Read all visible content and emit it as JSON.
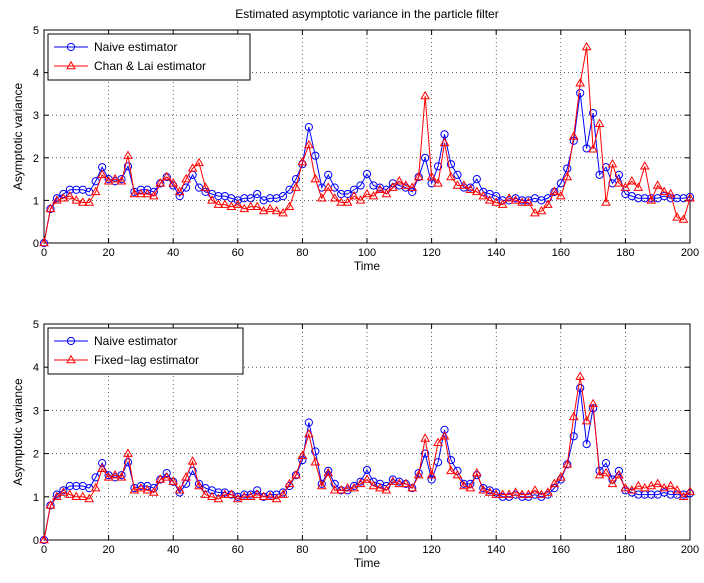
{
  "chart_data": [
    {
      "type": "line",
      "title": "Estimated asymptotic variance in the particle filter",
      "xlabel": "Time",
      "ylabel": "Asymptotic variance",
      "xlim": [
        0,
        200
      ],
      "ylim": [
        0,
        5
      ],
      "xticks": [
        "0",
        "20",
        "40",
        "60",
        "80",
        "100",
        "120",
        "140",
        "160",
        "180",
        "200"
      ],
      "yticks": [
        "0",
        "1",
        "2",
        "3",
        "4",
        "5"
      ],
      "grid": true,
      "legend_position": "top-left",
      "x": [
        0,
        2,
        4,
        6,
        8,
        10,
        12,
        14,
        16,
        18,
        20,
        22,
        24,
        26,
        28,
        30,
        32,
        34,
        36,
        38,
        40,
        42,
        44,
        46,
        48,
        50,
        52,
        54,
        56,
        58,
        60,
        62,
        64,
        66,
        68,
        70,
        72,
        74,
        76,
        78,
        80,
        82,
        84,
        86,
        88,
        90,
        92,
        94,
        96,
        98,
        100,
        102,
        104,
        106,
        108,
        110,
        112,
        114,
        116,
        118,
        120,
        122,
        124,
        126,
        128,
        130,
        132,
        134,
        136,
        138,
        140,
        142,
        144,
        146,
        148,
        150,
        152,
        154,
        156,
        158,
        160,
        162,
        164,
        166,
        168,
        170,
        172,
        174,
        176,
        178,
        180,
        182,
        184,
        186,
        188,
        190,
        192,
        194,
        196,
        198,
        200
      ],
      "series": [
        {
          "name": "Naive estimator",
          "color": "#0000ff",
          "marker": "circle",
          "values": [
            0,
            0.8,
            1.05,
            1.15,
            1.25,
            1.25,
            1.25,
            1.2,
            1.45,
            1.78,
            1.5,
            1.45,
            1.5,
            1.8,
            1.2,
            1.25,
            1.25,
            1.2,
            1.4,
            1.55,
            1.35,
            1.1,
            1.3,
            1.6,
            1.3,
            1.2,
            1.15,
            1.1,
            1.1,
            1.05,
            1.0,
            1.05,
            1.05,
            1.15,
            1.0,
            1.05,
            1.05,
            1.1,
            1.25,
            1.5,
            1.85,
            2.72,
            2.05,
            1.3,
            1.6,
            1.3,
            1.15,
            1.15,
            1.25,
            1.35,
            1.62,
            1.35,
            1.3,
            1.25,
            1.4,
            1.35,
            1.3,
            1.2,
            1.55,
            2.0,
            1.4,
            1.8,
            2.55,
            1.85,
            1.6,
            1.3,
            1.3,
            1.5,
            1.2,
            1.15,
            1.1,
            1.0,
            1.0,
            1.05,
            1.0,
            1.0,
            1.05,
            1.0,
            1.05,
            1.2,
            1.4,
            1.75,
            2.4,
            3.52,
            2.22,
            3.05,
            1.6,
            1.78,
            1.4,
            1.6,
            1.15,
            1.1,
            1.05,
            1.05,
            1.05,
            1.05,
            1.1,
            1.05,
            1.05,
            1.05,
            1.08
          ]
        },
        {
          "name": "Chan & Lai estimator",
          "color": "#ff0000",
          "marker": "triangle",
          "values": [
            0,
            0.8,
            1.0,
            1.05,
            1.1,
            1.0,
            0.95,
            0.95,
            1.2,
            1.6,
            1.45,
            1.5,
            1.45,
            2.05,
            1.15,
            1.15,
            1.15,
            1.1,
            1.4,
            1.55,
            1.4,
            1.2,
            1.5,
            1.75,
            1.88,
            1.3,
            1.0,
            0.9,
            0.9,
            0.85,
            0.9,
            0.8,
            0.85,
            0.85,
            0.75,
            0.8,
            0.75,
            0.7,
            0.85,
            1.3,
            1.9,
            2.3,
            1.5,
            1.05,
            1.3,
            1.05,
            0.95,
            0.95,
            1.1,
            1.0,
            1.15,
            1.1,
            1.25,
            1.15,
            1.3,
            1.45,
            1.35,
            1.3,
            1.55,
            3.45,
            1.55,
            1.4,
            2.35,
            1.55,
            1.35,
            1.35,
            1.25,
            1.2,
            1.1,
            1.0,
            0.95,
            0.9,
            1.05,
            1.0,
            0.95,
            0.95,
            0.7,
            0.75,
            0.9,
            1.2,
            1.1,
            1.55,
            2.5,
            3.75,
            4.6,
            2.2,
            2.8,
            0.95,
            1.85,
            1.4,
            1.3,
            1.45,
            1.3,
            1.8,
            1.0,
            1.35,
            1.2,
            1.15,
            0.6,
            0.55,
            1.05
          ]
        }
      ]
    },
    {
      "type": "line",
      "title": "",
      "xlabel": "Time",
      "ylabel": "Asymptotic variance",
      "xlim": [
        0,
        200
      ],
      "ylim": [
        0,
        5
      ],
      "xticks": [
        "0",
        "20",
        "40",
        "60",
        "80",
        "100",
        "120",
        "140",
        "160",
        "180",
        "200"
      ],
      "yticks": [
        "0",
        "1",
        "2",
        "3",
        "4",
        "5"
      ],
      "grid": true,
      "legend_position": "top-left",
      "x": [
        0,
        2,
        4,
        6,
        8,
        10,
        12,
        14,
        16,
        18,
        20,
        22,
        24,
        26,
        28,
        30,
        32,
        34,
        36,
        38,
        40,
        42,
        44,
        46,
        48,
        50,
        52,
        54,
        56,
        58,
        60,
        62,
        64,
        66,
        68,
        70,
        72,
        74,
        76,
        78,
        80,
        82,
        84,
        86,
        88,
        90,
        92,
        94,
        96,
        98,
        100,
        102,
        104,
        106,
        108,
        110,
        112,
        114,
        116,
        118,
        120,
        122,
        124,
        126,
        128,
        130,
        132,
        134,
        136,
        138,
        140,
        142,
        144,
        146,
        148,
        150,
        152,
        154,
        156,
        158,
        160,
        162,
        164,
        166,
        168,
        170,
        172,
        174,
        176,
        178,
        180,
        182,
        184,
        186,
        188,
        190,
        192,
        194,
        196,
        198,
        200
      ],
      "series": [
        {
          "name": "Naive estimator",
          "color": "#0000ff",
          "marker": "circle",
          "values": [
            0,
            0.8,
            1.05,
            1.15,
            1.25,
            1.25,
            1.25,
            1.2,
            1.45,
            1.78,
            1.5,
            1.45,
            1.5,
            1.8,
            1.2,
            1.25,
            1.25,
            1.2,
            1.4,
            1.55,
            1.35,
            1.1,
            1.3,
            1.6,
            1.3,
            1.2,
            1.15,
            1.1,
            1.1,
            1.05,
            1.0,
            1.05,
            1.05,
            1.15,
            1.0,
            1.05,
            1.05,
            1.1,
            1.25,
            1.5,
            1.85,
            2.72,
            2.05,
            1.3,
            1.6,
            1.3,
            1.15,
            1.15,
            1.25,
            1.35,
            1.62,
            1.35,
            1.3,
            1.25,
            1.4,
            1.35,
            1.3,
            1.2,
            1.55,
            2.0,
            1.4,
            1.8,
            2.55,
            1.85,
            1.6,
            1.3,
            1.3,
            1.5,
            1.2,
            1.15,
            1.1,
            1.0,
            1.0,
            1.05,
            1.0,
            1.0,
            1.05,
            1.0,
            1.05,
            1.2,
            1.4,
            1.75,
            2.4,
            3.52,
            2.22,
            3.05,
            1.6,
            1.78,
            1.4,
            1.6,
            1.15,
            1.1,
            1.05,
            1.05,
            1.05,
            1.05,
            1.1,
            1.05,
            1.05,
            1.05,
            1.08
          ]
        },
        {
          "name": "Fixed−lag estimator",
          "color": "#ff0000",
          "marker": "triangle",
          "values": [
            0,
            0.8,
            1.0,
            1.1,
            1.05,
            1.0,
            1.0,
            0.95,
            1.2,
            1.65,
            1.45,
            1.5,
            1.45,
            2.0,
            1.15,
            1.2,
            1.15,
            1.1,
            1.4,
            1.45,
            1.35,
            1.15,
            1.45,
            1.82,
            1.25,
            1.05,
            1.0,
            0.95,
            1.05,
            1.05,
            0.95,
            1.0,
            1.0,
            1.05,
            1.0,
            1.0,
            0.95,
            1.05,
            1.3,
            1.5,
            1.95,
            2.45,
            1.8,
            1.25,
            1.55,
            1.15,
            1.15,
            1.2,
            1.2,
            1.3,
            1.4,
            1.25,
            1.2,
            1.15,
            1.35,
            1.3,
            1.3,
            1.2,
            1.5,
            2.35,
            1.5,
            2.25,
            2.4,
            1.6,
            1.5,
            1.25,
            1.2,
            1.55,
            1.15,
            1.1,
            1.05,
            1.05,
            1.05,
            1.1,
            1.05,
            1.05,
            1.15,
            1.05,
            1.1,
            1.3,
            1.45,
            1.75,
            2.85,
            3.78,
            2.75,
            3.15,
            1.5,
            1.55,
            1.3,
            1.5,
            1.2,
            1.15,
            1.25,
            1.2,
            1.25,
            1.3,
            1.2,
            1.25,
            1.15,
            1.0,
            1.12
          ]
        }
      ]
    }
  ]
}
